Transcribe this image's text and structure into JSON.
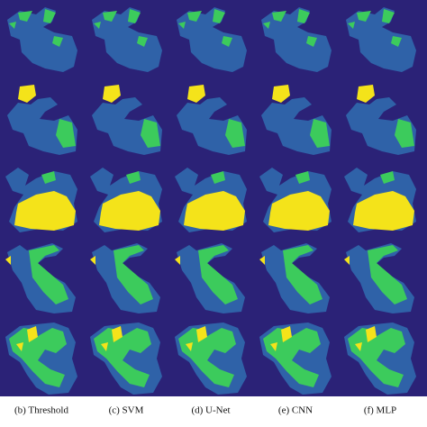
{
  "captions": [
    "(b) Threshold",
    "(c) SVM",
    "(d) U-Net",
    "(e) CNN",
    "(f) MLP"
  ]
}
